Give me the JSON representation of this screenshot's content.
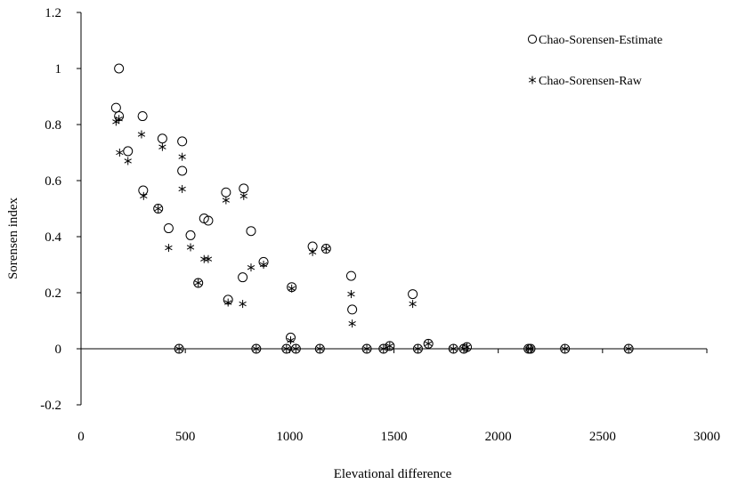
{
  "chart_data": {
    "type": "scatter",
    "title": "",
    "xlabel": "Elevational difference",
    "ylabel": "Sorensen index",
    "xlim": [
      0,
      3000
    ],
    "ylim": [
      -0.2,
      1.2
    ],
    "xticks": [
      "0",
      "500",
      "1000",
      "1500",
      "2000",
      "2500",
      "3000"
    ],
    "yticks": [
      "-0.2",
      "0",
      "0.2",
      "0.4",
      "0.6",
      "0.8",
      "1",
      "1.2"
    ],
    "grid": false,
    "legend_position": "top-right",
    "series": [
      {
        "name": "Chao-Sorensen-Estimate",
        "marker": "circle",
        "points": [
          [
            182,
            1.0
          ],
          [
            168,
            0.86
          ],
          [
            182,
            0.83
          ],
          [
            295,
            0.83
          ],
          [
            390,
            0.75
          ],
          [
            485,
            0.74
          ],
          [
            225,
            0.705
          ],
          [
            485,
            0.635
          ],
          [
            298,
            0.565
          ],
          [
            370,
            0.5
          ],
          [
            695,
            0.558
          ],
          [
            780,
            0.572
          ],
          [
            590,
            0.465
          ],
          [
            610,
            0.457
          ],
          [
            420,
            0.43
          ],
          [
            525,
            0.405
          ],
          [
            815,
            0.42
          ],
          [
            1110,
            0.365
          ],
          [
            1175,
            0.357
          ],
          [
            875,
            0.31
          ],
          [
            562,
            0.235
          ],
          [
            705,
            0.175
          ],
          [
            775,
            0.255
          ],
          [
            1010,
            0.22
          ],
          [
            1295,
            0.26
          ],
          [
            1300,
            0.14
          ],
          [
            1590,
            0.195
          ],
          [
            1005,
            0.04
          ],
          [
            470,
            0.0
          ],
          [
            840,
            0.0
          ],
          [
            985,
            0.0
          ],
          [
            1030,
            0.0
          ],
          [
            1145,
            0.0
          ],
          [
            1370,
            0.0
          ],
          [
            1450,
            0.0
          ],
          [
            1480,
            0.01
          ],
          [
            1615,
            0.0
          ],
          [
            1665,
            0.018
          ],
          [
            1785,
            0.0
          ],
          [
            1835,
            0.0
          ],
          [
            1850,
            0.006
          ],
          [
            2145,
            0.0
          ],
          [
            2155,
            0.0
          ],
          [
            2320,
            0.0
          ],
          [
            2625,
            0.0
          ]
        ]
      },
      {
        "name": "Chao-Sorensen-Raw",
        "marker": "asterisk",
        "points": [
          [
            168,
            0.81
          ],
          [
            182,
            0.82
          ],
          [
            290,
            0.765
          ],
          [
            390,
            0.72
          ],
          [
            485,
            0.685
          ],
          [
            185,
            0.7
          ],
          [
            225,
            0.67
          ],
          [
            485,
            0.57
          ],
          [
            300,
            0.545
          ],
          [
            370,
            0.5
          ],
          [
            695,
            0.53
          ],
          [
            780,
            0.545
          ],
          [
            590,
            0.32
          ],
          [
            610,
            0.32
          ],
          [
            420,
            0.36
          ],
          [
            525,
            0.362
          ],
          [
            815,
            0.29
          ],
          [
            1110,
            0.345
          ],
          [
            1175,
            0.357
          ],
          [
            875,
            0.3
          ],
          [
            562,
            0.235
          ],
          [
            705,
            0.165
          ],
          [
            775,
            0.16
          ],
          [
            1010,
            0.215
          ],
          [
            1295,
            0.195
          ],
          [
            1300,
            0.09
          ],
          [
            1590,
            0.16
          ],
          [
            1005,
            0.03
          ],
          [
            470,
            0.0
          ],
          [
            840,
            0.0
          ],
          [
            985,
            0.0
          ],
          [
            1030,
            0.0
          ],
          [
            1145,
            0.0
          ],
          [
            1370,
            0.0
          ],
          [
            1450,
            0.0
          ],
          [
            1480,
            0.01
          ],
          [
            1615,
            0.0
          ],
          [
            1665,
            0.018
          ],
          [
            1785,
            0.0
          ],
          [
            1835,
            0.0
          ],
          [
            1850,
            0.006
          ],
          [
            2145,
            0.0
          ],
          [
            2155,
            0.0
          ],
          [
            2320,
            0.0
          ],
          [
            2625,
            0.0
          ]
        ]
      }
    ]
  }
}
